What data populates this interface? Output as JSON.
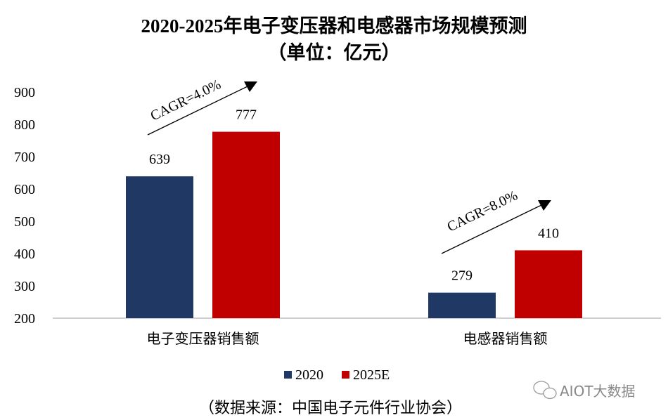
{
  "chart_data": {
    "type": "bar",
    "title": "2020-2025年电子变压器和电感器市场规模预测",
    "subtitle": "（单位：亿元）",
    "categories": [
      "电子变压器销售额",
      "电感器销售额"
    ],
    "series": [
      {
        "name": "2020",
        "color": "#203864",
        "values": [
          639,
          279
        ]
      },
      {
        "name": "2025E",
        "color": "#C00000",
        "values": [
          777,
          410
        ]
      }
    ],
    "ylim": [
      200,
      900
    ],
    "yticks": [
      200,
      300,
      400,
      500,
      600,
      700,
      800,
      900
    ],
    "grid": false,
    "legend": "bottom",
    "annotations": [
      "CAGR=4.0%",
      "CAGR=8.0%"
    ],
    "xlabel": "",
    "ylabel": ""
  },
  "source": "（数据来源：中国电子元件行业协会）",
  "watermark": "AIOT大数据"
}
